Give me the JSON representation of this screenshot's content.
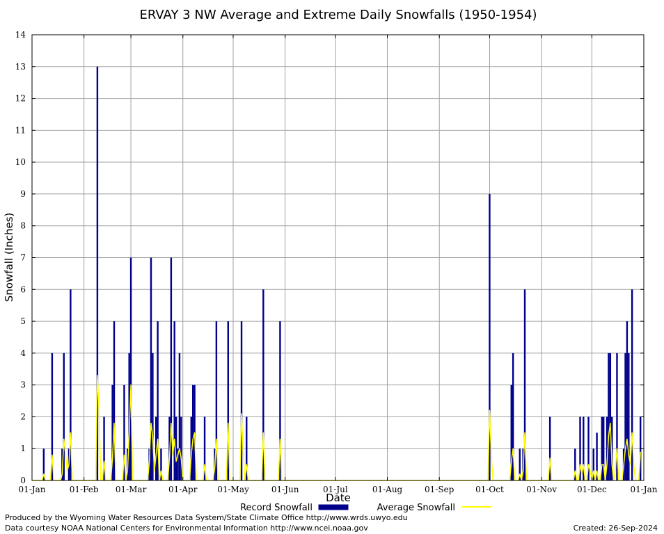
{
  "chart_data": {
    "type": "bar",
    "title": "ERVAY 3 NW Average and Extreme Daily Snowfalls (1950-1954)",
    "xlabel": "Date",
    "ylabel": "Snowfall (Inches)",
    "ylim": [
      0,
      14
    ],
    "yticks": [
      "0",
      "1",
      "2",
      "3",
      "4",
      "5",
      "6",
      "7",
      "8",
      "9",
      "10",
      "11",
      "12",
      "13",
      "14"
    ],
    "xlim": [
      1,
      366
    ],
    "xticks": [
      {
        "day": 1,
        "label": "01-Jan"
      },
      {
        "day": 32,
        "label": "01-Feb"
      },
      {
        "day": 60,
        "label": "01-Mar"
      },
      {
        "day": 91,
        "label": "01-Apr"
      },
      {
        "day": 121,
        "label": "01-May"
      },
      {
        "day": 152,
        "label": "01-Jun"
      },
      {
        "day": 182,
        "label": "01-Jul"
      },
      {
        "day": 213,
        "label": "01-Aug"
      },
      {
        "day": 244,
        "label": "01-Sep"
      },
      {
        "day": 274,
        "label": "01-Oct"
      },
      {
        "day": 305,
        "label": "01-Nov"
      },
      {
        "day": 335,
        "label": "01-Dec"
      },
      {
        "day": 366,
        "label": "01-Jan"
      }
    ],
    "grid": true,
    "series": [
      {
        "name": "Record Snowfall",
        "kind": "bar",
        "color": "#00008b",
        "points": [
          [
            8,
            1
          ],
          [
            13,
            4
          ],
          [
            19,
            1
          ],
          [
            20,
            4
          ],
          [
            23,
            1
          ],
          [
            24,
            6
          ],
          [
            40,
            13
          ],
          [
            44,
            2
          ],
          [
            49,
            3
          ],
          [
            50,
            5
          ],
          [
            56,
            3
          ],
          [
            58,
            1
          ],
          [
            59,
            4
          ],
          [
            60,
            7
          ],
          [
            71,
            1
          ],
          [
            72,
            7
          ],
          [
            73,
            4
          ],
          [
            75,
            2
          ],
          [
            76,
            5
          ],
          [
            78,
            1
          ],
          [
            83,
            2
          ],
          [
            84,
            7
          ],
          [
            86,
            5
          ],
          [
            87,
            2
          ],
          [
            88,
            1
          ],
          [
            89,
            4
          ],
          [
            90,
            2
          ],
          [
            96,
            2
          ],
          [
            97,
            3
          ],
          [
            98,
            3
          ],
          [
            104,
            2
          ],
          [
            110,
            1
          ],
          [
            111,
            5
          ],
          [
            118,
            5
          ],
          [
            126,
            5
          ],
          [
            129,
            2
          ],
          [
            139,
            6
          ],
          [
            149,
            5
          ],
          [
            274,
            9
          ],
          [
            287,
            3
          ],
          [
            288,
            4
          ],
          [
            292,
            1
          ],
          [
            294,
            1
          ],
          [
            295,
            6
          ],
          [
            310,
            2
          ],
          [
            325,
            1
          ],
          [
            328,
            2
          ],
          [
            330,
            2
          ],
          [
            333,
            2
          ],
          [
            336,
            1
          ],
          [
            338,
            1.5
          ],
          [
            341,
            2
          ],
          [
            342,
            2
          ],
          [
            344,
            2
          ],
          [
            345,
            4
          ],
          [
            346,
            4
          ],
          [
            347,
            2
          ],
          [
            350,
            4
          ],
          [
            354,
            1
          ],
          [
            355,
            4
          ],
          [
            356,
            5
          ],
          [
            357,
            4
          ],
          [
            359,
            6
          ],
          [
            364,
            2
          ]
        ]
      },
      {
        "name": "Average Snowfall",
        "kind": "line",
        "color": "#ffff00",
        "points": [
          [
            1,
            0
          ],
          [
            7,
            0
          ],
          [
            8,
            0.2
          ],
          [
            9,
            0
          ],
          [
            12,
            0
          ],
          [
            13,
            0.8
          ],
          [
            14,
            0
          ],
          [
            18,
            0
          ],
          [
            19,
            0.2
          ],
          [
            20,
            1.3
          ],
          [
            21,
            0.8
          ],
          [
            22,
            0.3
          ],
          [
            23,
            0.5
          ],
          [
            24,
            1.5
          ],
          [
            25,
            0
          ],
          [
            39,
            0
          ],
          [
            40,
            3.3
          ],
          [
            41,
            2.2
          ],
          [
            42,
            0
          ],
          [
            43,
            0
          ],
          [
            44,
            0.6
          ],
          [
            45,
            0
          ],
          [
            48,
            0
          ],
          [
            49,
            0.7
          ],
          [
            50,
            1.8
          ],
          [
            51,
            0
          ],
          [
            55,
            0
          ],
          [
            56,
            0.8
          ],
          [
            57,
            0
          ],
          [
            58,
            0.3
          ],
          [
            59,
            1.5
          ],
          [
            60,
            3.0
          ],
          [
            61,
            0
          ],
          [
            70,
            0
          ],
          [
            71,
            0.6
          ],
          [
            72,
            1.8
          ],
          [
            73,
            1.4
          ],
          [
            74,
            0.3
          ],
          [
            75,
            0.8
          ],
          [
            76,
            1.3
          ],
          [
            77,
            0
          ],
          [
            78,
            0.3
          ],
          [
            79,
            0
          ],
          [
            82,
            0
          ],
          [
            83,
            0.7
          ],
          [
            84,
            1.8
          ],
          [
            85,
            0.8
          ],
          [
            86,
            1.3
          ],
          [
            87,
            0.6
          ],
          [
            88,
            0.8
          ],
          [
            89,
            1.0
          ],
          [
            90,
            0.7
          ],
          [
            91,
            0
          ],
          [
            95,
            0
          ],
          [
            96,
            0.8
          ],
          [
            97,
            1.3
          ],
          [
            98,
            1.5
          ],
          [
            99,
            0
          ],
          [
            103,
            0
          ],
          [
            104,
            0.5
          ],
          [
            105,
            0
          ],
          [
            109,
            0
          ],
          [
            110,
            0.4
          ],
          [
            111,
            1.3
          ],
          [
            112,
            0
          ],
          [
            117,
            0
          ],
          [
            118,
            1.8
          ],
          [
            119,
            0
          ],
          [
            125,
            0
          ],
          [
            126,
            2.1
          ],
          [
            127,
            0.8
          ],
          [
            128,
            0
          ],
          [
            129,
            0.5
          ],
          [
            130,
            0
          ],
          [
            138,
            0
          ],
          [
            139,
            1.5
          ],
          [
            140,
            0
          ],
          [
            148,
            0
          ],
          [
            149,
            1.3
          ],
          [
            150,
            0
          ],
          [
            273,
            0
          ],
          [
            274,
            2.2
          ],
          [
            275,
            0.8
          ],
          [
            276,
            0
          ],
          [
            286,
            0
          ],
          [
            287,
            0.6
          ],
          [
            288,
            1.0
          ],
          [
            289,
            0
          ],
          [
            291,
            0
          ],
          [
            292,
            0.2
          ],
          [
            293,
            0
          ],
          [
            294,
            0.3
          ],
          [
            295,
            1.5
          ],
          [
            296,
            0
          ],
          [
            309,
            0
          ],
          [
            310,
            0.7
          ],
          [
            311,
            0
          ],
          [
            324,
            0
          ],
          [
            325,
            0.3
          ],
          [
            326,
            0
          ],
          [
            327,
            0
          ],
          [
            328,
            0.5
          ],
          [
            329,
            0.2
          ],
          [
            330,
            0.5
          ],
          [
            331,
            0
          ],
          [
            332,
            0
          ],
          [
            333,
            0.5
          ],
          [
            334,
            0.3
          ],
          [
            335,
            0
          ],
          [
            336,
            0.3
          ],
          [
            337,
            0
          ],
          [
            338,
            0.3
          ],
          [
            339,
            0
          ],
          [
            340,
            0
          ],
          [
            341,
            0.5
          ],
          [
            342,
            0.5
          ],
          [
            343,
            0
          ],
          [
            344,
            0.5
          ],
          [
            345,
            1.4
          ],
          [
            346,
            1.8
          ],
          [
            347,
            0.5
          ],
          [
            348,
            0
          ],
          [
            349,
            0.3
          ],
          [
            350,
            1.0
          ],
          [
            351,
            0
          ],
          [
            353,
            0
          ],
          [
            354,
            0.5
          ],
          [
            355,
            1.0
          ],
          [
            356,
            1.3
          ],
          [
            357,
            0.8
          ],
          [
            358,
            0.5
          ],
          [
            359,
            1.5
          ],
          [
            360,
            0.5
          ],
          [
            361,
            0
          ],
          [
            363,
            0
          ],
          [
            364,
            0.9
          ]
        ]
      }
    ]
  },
  "legend": {
    "record_label": "Record Snowfall",
    "average_label": "Average Snowfall"
  },
  "footer": {
    "produced_by": "Produced by the Wyoming Water Resources Data System/State Climate Office http://www.wrds.uwyo.edu",
    "courtesy": "Data courtesy NOAA National Centers for Environmental Information http://www.ncei.noaa.gov",
    "created": "Created:  26-Sep-2024"
  }
}
